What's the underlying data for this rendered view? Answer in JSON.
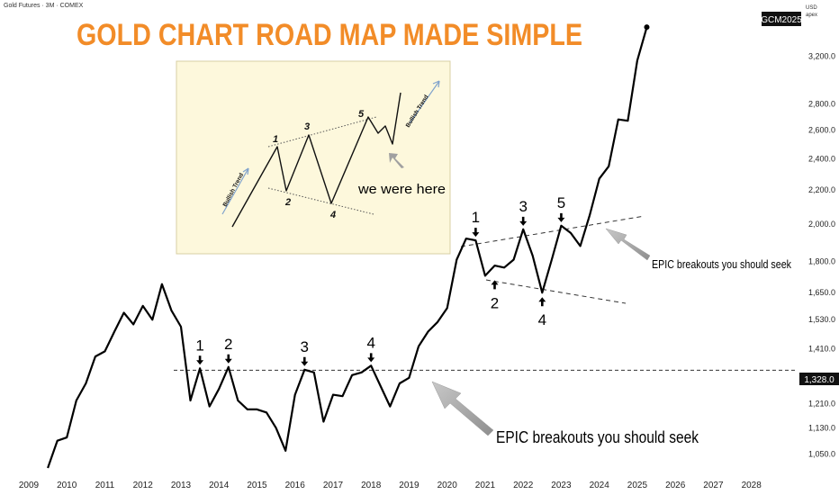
{
  "header": {
    "symbol_line": "Gold Futures · 3M · COMEX"
  },
  "title": "GOLD CHART ROAD MAP MADE SIMPLE",
  "colors": {
    "title": "#f28c28",
    "line": "#000000",
    "inset_bg": "#fdf8dc",
    "arrow": "#a8a8a8"
  },
  "price_axis": {
    "currency": "USD",
    "scale_note": "apex",
    "symbol_badge": "GCM2025",
    "current_price_label": "1,328.0",
    "ticks": [
      "3,200.0",
      "2,800.0",
      "2,600.0",
      "2,400.0",
      "2,200.0",
      "2,000.0",
      "1,800.0",
      "1,650.0",
      "1,530.0",
      "1,410.0",
      "1,210.0",
      "1,130.0",
      "1,050.0"
    ]
  },
  "time_axis": {
    "ticks": [
      "2009",
      "2010",
      "2011",
      "2012",
      "2013",
      "2014",
      "2015",
      "2016",
      "2017",
      "2018",
      "2019",
      "2020",
      "2021",
      "2022",
      "2023",
      "2024",
      "2025",
      "2026",
      "2027",
      "2028"
    ]
  },
  "inset": {
    "wave_labels": [
      "1",
      "2",
      "3",
      "4",
      "5"
    ],
    "trend_labels": [
      "Bullish Trend",
      "Bullish Trend"
    ],
    "caption": "we were here"
  },
  "annotations": {
    "lower_wave_labels": [
      "1",
      "2",
      "3",
      "4"
    ],
    "upper_wave_labels": [
      "1",
      "2",
      "3",
      "4",
      "5"
    ],
    "breakout_upper": "EPIC breakouts you should seek",
    "breakout_lower": "EPIC breakouts you should seek"
  },
  "chart_data": {
    "type": "line",
    "title": "GOLD CHART ROAD MAP MADE SIMPLE",
    "xlabel": "",
    "ylabel": "",
    "y_scale": "log",
    "xlim": [
      2009,
      2028.6
    ],
    "ylim": [
      1010,
      3560
    ],
    "series": [
      {
        "x": [
          2009.5,
          2009.75,
          2010.0,
          2010.25,
          2010.5,
          2010.75,
          2011.0,
          2011.25,
          2011.5,
          2011.75,
          2012.0,
          2012.25,
          2012.5,
          2012.75,
          2013.0,
          2013.25,
          2013.5,
          2013.75,
          2014.0,
          2014.25,
          2014.5,
          2014.75,
          2015.0,
          2015.25,
          2015.5,
          2015.75,
          2016.0,
          2016.25,
          2016.5,
          2016.75,
          2017.0,
          2017.25,
          2017.5,
          2017.75,
          2018.0,
          2018.25,
          2018.5,
          2018.75,
          2019.0,
          2019.25,
          2019.5,
          2019.75,
          2020.0,
          2020.25,
          2020.5,
          2020.75,
          2021.0,
          2021.25,
          2021.5,
          2021.75,
          2022.0,
          2022.25,
          2022.5,
          2022.75,
          2023.0,
          2023.25,
          2023.5,
          2023.75,
          2024.0,
          2024.25,
          2024.5,
          2024.75,
          2025.0,
          2025.25
        ],
        "y": [
          1010,
          1090,
          1100,
          1220,
          1280,
          1380,
          1400,
          1480,
          1560,
          1510,
          1590,
          1530,
          1690,
          1570,
          1500,
          1220,
          1335,
          1200,
          1260,
          1340,
          1220,
          1190,
          1190,
          1180,
          1130,
          1060,
          1240,
          1330,
          1320,
          1150,
          1240,
          1235,
          1310,
          1320,
          1345,
          1270,
          1200,
          1280,
          1300,
          1420,
          1480,
          1520,
          1580,
          1810,
          1920,
          1910,
          1730,
          1780,
          1770,
          1810,
          1970,
          1830,
          1650,
          1810,
          1990,
          1950,
          1880,
          2050,
          2270,
          2350,
          2680,
          2670,
          3160,
          3470
        ]
      }
    ],
    "annotations": {
      "resistance_level": 1328,
      "lower_wave_points": [
        [
          2013.5,
          1335
        ],
        [
          2014.25,
          1340
        ],
        [
          2016.25,
          1330
        ],
        [
          2018.0,
          1345
        ]
      ],
      "upper_wave_points": [
        [
          2020.75,
          1910
        ],
        [
          2021.25,
          1730
        ],
        [
          2022.0,
          1970
        ],
        [
          2022.5,
          1650
        ],
        [
          2023.0,
          1990
        ]
      ]
    }
  }
}
